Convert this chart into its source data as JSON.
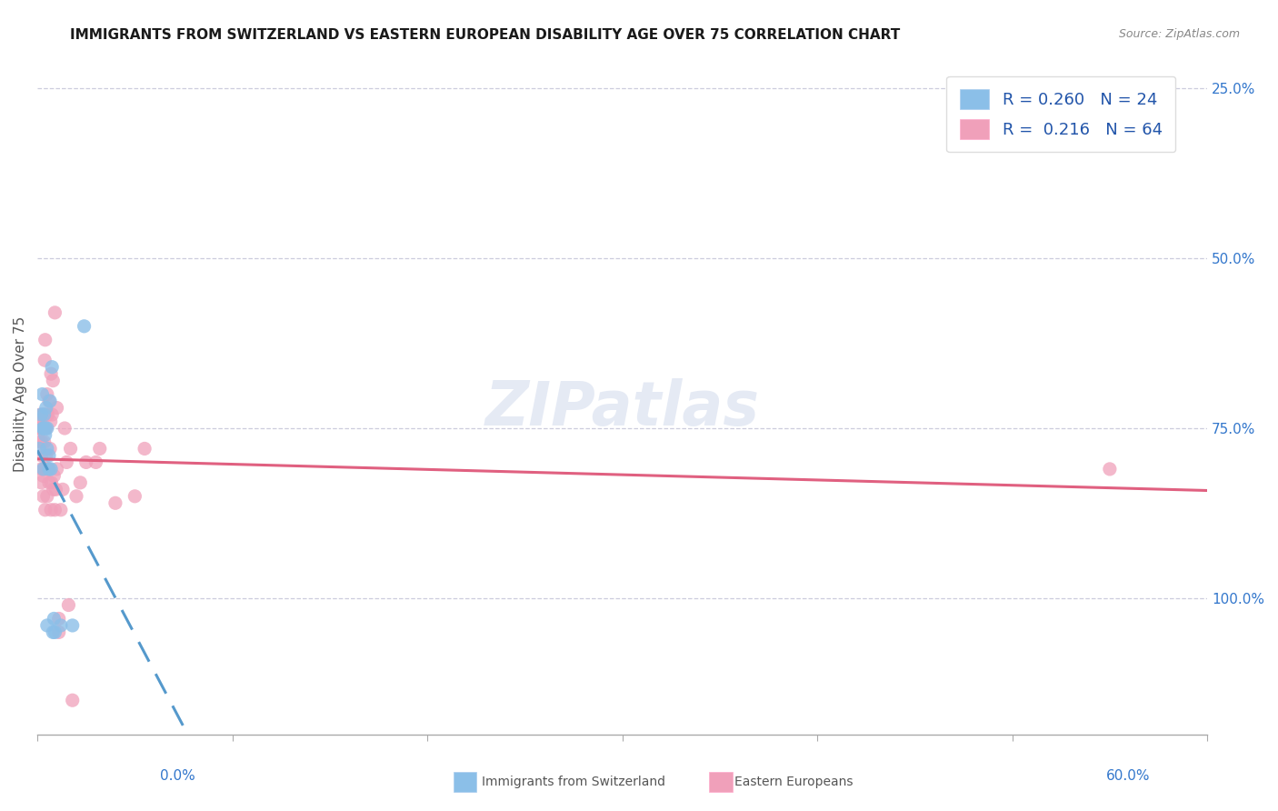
{
  "title": "IMMIGRANTS FROM SWITZERLAND VS EASTERN EUROPEAN DISABILITY AGE OVER 75 CORRELATION CHART",
  "source": "Source: ZipAtlas.com",
  "ylabel": "Disability Age Over 75",
  "ylabel_right_labels": [
    "100.0%",
    "75.0%",
    "50.0%",
    "25.0%"
  ],
  "ylabel_right_positions": [
    1.0,
    0.75,
    0.5,
    0.25
  ],
  "watermark": "ZIPatlas",
  "color_swiss": "#8BBFE8",
  "color_eastern": "#F0A0BA",
  "trendline_swiss_color": "#5599CC",
  "trendline_eastern_color": "#E06080",
  "swiss_x": [
    0.1,
    0.2,
    0.25,
    0.3,
    0.3,
    0.3,
    0.35,
    0.4,
    0.4,
    0.45,
    0.5,
    0.5,
    0.5,
    0.6,
    0.6,
    0.65,
    0.7,
    0.75,
    0.8,
    0.85,
    0.9,
    1.2,
    1.8,
    2.4
  ],
  "swiss_y": [
    0.47,
    0.52,
    0.55,
    0.44,
    0.5,
    0.5,
    0.52,
    0.49,
    0.5,
    0.53,
    0.47,
    0.5,
    0.21,
    0.44,
    0.46,
    0.54,
    0.44,
    0.59,
    0.2,
    0.22,
    0.2,
    0.21,
    0.21,
    0.65
  ],
  "eastern_x": [
    0.1,
    0.1,
    0.1,
    0.12,
    0.15,
    0.15,
    0.2,
    0.2,
    0.2,
    0.22,
    0.25,
    0.25,
    0.28,
    0.3,
    0.3,
    0.32,
    0.35,
    0.35,
    0.38,
    0.4,
    0.4,
    0.42,
    0.45,
    0.45,
    0.48,
    0.5,
    0.5,
    0.52,
    0.55,
    0.55,
    0.6,
    0.6,
    0.65,
    0.68,
    0.7,
    0.7,
    0.72,
    0.75,
    0.8,
    0.82,
    0.85,
    0.9,
    0.9,
    0.95,
    1.0,
    1.0,
    1.1,
    1.1,
    1.2,
    1.3,
    1.4,
    1.5,
    1.6,
    1.7,
    1.8,
    2.0,
    2.2,
    2.5,
    3.0,
    3.2,
    4.0,
    5.0,
    5.5,
    55.0
  ],
  "eastern_y": [
    0.48,
    0.5,
    0.5,
    0.5,
    0.51,
    0.52,
    0.42,
    0.44,
    0.46,
    0.48,
    0.5,
    0.5,
    0.52,
    0.4,
    0.43,
    0.44,
    0.48,
    0.52,
    0.6,
    0.63,
    0.38,
    0.44,
    0.46,
    0.5,
    0.52,
    0.55,
    0.4,
    0.44,
    0.44,
    0.52,
    0.54,
    0.42,
    0.47,
    0.51,
    0.58,
    0.38,
    0.42,
    0.52,
    0.57,
    0.41,
    0.43,
    0.67,
    0.38,
    0.41,
    0.44,
    0.53,
    0.2,
    0.22,
    0.38,
    0.41,
    0.5,
    0.45,
    0.24,
    0.47,
    0.1,
    0.4,
    0.42,
    0.45,
    0.45,
    0.47,
    0.39,
    0.4,
    0.47,
    0.44
  ],
  "xlim": [
    0.0,
    60.0
  ],
  "ylim": [
    0.05,
    1.05
  ],
  "xticks": [
    0,
    10,
    20,
    30,
    40,
    50,
    60
  ],
  "yticks_right": [
    0.25,
    0.5,
    0.75,
    1.0
  ],
  "figsize": [
    14.06,
    8.92
  ],
  "dpi": 100,
  "legend_items": [
    {
      "label": "R = 0.260   N = 24",
      "color": "#8BBFE8"
    },
    {
      "label": "R =  0.216   N = 64",
      "color": "#F0A0BA"
    }
  ],
  "bottom_legend": [
    {
      "label": "Immigrants from Switzerland",
      "color": "#8BBFE8"
    },
    {
      "label": "Eastern Europeans",
      "color": "#F0A0BA"
    }
  ]
}
